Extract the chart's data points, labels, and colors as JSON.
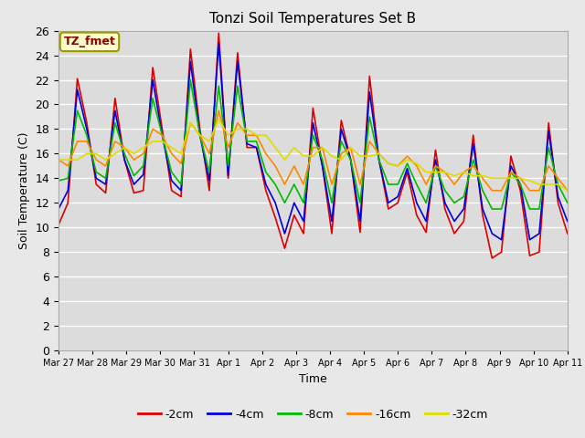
{
  "title": "Tonzi Soil Temperatures Set B",
  "xlabel": "Time",
  "ylabel": "Soil Temperature (C)",
  "ylim": [
    0,
    26
  ],
  "yticks": [
    0,
    2,
    4,
    6,
    8,
    10,
    12,
    14,
    16,
    18,
    20,
    22,
    24,
    26
  ],
  "annotation_text": "TZ_fmet",
  "annotation_color": "#8B0000",
  "annotation_bg": "#FFFFCC",
  "annotation_border": "#999900",
  "bg_color": "#E8E8E8",
  "plot_bg": "#DCDCDC",
  "grid_color": "#FFFFFF",
  "series": {
    "-2cm": {
      "color": "#DD0000",
      "lw": 1.2
    },
    "-4cm": {
      "color": "#0000DD",
      "lw": 1.2
    },
    "-8cm": {
      "color": "#00BB00",
      "lw": 1.2
    },
    "-16cm": {
      "color": "#FF8800",
      "lw": 1.2
    },
    "-32cm": {
      "color": "#DDDD00",
      "lw": 1.2
    }
  },
  "legend_order": [
    "-2cm",
    "-4cm",
    "-8cm",
    "-16cm",
    "-32cm"
  ],
  "x_tick_labels": [
    "Mar 27",
    "Mar 28",
    "Mar 29",
    "Mar 30",
    "Mar 31",
    "Apr 1",
    "Apr 2",
    "Apr 3",
    "Apr 4",
    "Apr 5",
    "Apr 6",
    "Apr 7",
    "Apr 8",
    "Apr 9",
    "Apr 10",
    "Apr 11"
  ],
  "data_2cm": [
    10.2,
    12.0,
    22.1,
    18.5,
    13.5,
    12.8,
    20.5,
    15.5,
    12.8,
    13.0,
    23.0,
    18.0,
    13.0,
    12.5,
    24.5,
    18.0,
    13.0,
    25.8,
    14.0,
    24.2,
    16.5,
    16.5,
    13.0,
    10.8,
    8.3,
    11.0,
    9.5,
    19.7,
    15.0,
    9.5,
    18.7,
    15.5,
    9.6,
    22.3,
    15.5,
    11.5,
    12.0,
    14.5,
    11.0,
    9.6,
    16.3,
    11.5,
    9.5,
    10.5,
    17.5,
    11.0,
    7.5,
    8.0,
    15.8,
    13.0,
    7.7,
    8.0,
    18.5,
    12.0,
    9.5
  ],
  "data_4cm": [
    11.5,
    13.0,
    21.2,
    18.0,
    14.0,
    13.5,
    19.5,
    15.5,
    13.5,
    14.3,
    22.0,
    17.5,
    13.8,
    13.0,
    23.5,
    17.5,
    13.8,
    25.0,
    14.2,
    23.5,
    16.8,
    16.5,
    13.5,
    12.0,
    9.5,
    12.0,
    10.5,
    18.5,
    15.0,
    10.5,
    18.0,
    15.5,
    10.5,
    21.0,
    15.5,
    12.0,
    12.5,
    14.8,
    12.0,
    10.5,
    15.5,
    12.0,
    10.5,
    11.5,
    16.8,
    11.5,
    9.5,
    9.0,
    15.0,
    13.5,
    9.0,
    9.5,
    17.8,
    12.5,
    10.5
  ],
  "data_8cm": [
    13.8,
    14.0,
    19.5,
    17.5,
    14.5,
    14.0,
    18.5,
    16.0,
    14.2,
    15.0,
    20.5,
    17.5,
    14.5,
    13.5,
    22.0,
    17.5,
    14.5,
    21.5,
    15.0,
    21.5,
    17.0,
    17.0,
    14.5,
    13.5,
    12.0,
    13.5,
    12.0,
    17.5,
    15.5,
    12.0,
    17.0,
    15.5,
    12.0,
    19.0,
    15.5,
    13.5,
    13.5,
    15.2,
    13.5,
    12.0,
    15.0,
    13.0,
    12.0,
    12.5,
    15.5,
    13.0,
    11.5,
    11.5,
    14.5,
    13.5,
    11.5,
    11.5,
    16.5,
    13.5,
    12.0
  ],
  "data_16cm": [
    15.5,
    15.0,
    17.0,
    17.0,
    15.5,
    15.0,
    17.0,
    16.5,
    15.5,
    16.0,
    18.0,
    17.5,
    16.0,
    15.2,
    18.5,
    17.5,
    16.0,
    19.5,
    16.5,
    18.5,
    17.5,
    17.5,
    16.0,
    15.0,
    13.5,
    15.0,
    13.5,
    16.5,
    16.5,
    13.5,
    16.0,
    16.5,
    13.5,
    17.0,
    16.0,
    15.2,
    15.0,
    15.8,
    15.0,
    13.5,
    15.0,
    14.5,
    13.5,
    14.5,
    15.0,
    14.0,
    13.0,
    13.0,
    14.5,
    14.0,
    13.0,
    13.0,
    15.0,
    14.0,
    13.0
  ],
  "data_32cm": [
    15.5,
    15.5,
    15.5,
    16.0,
    16.0,
    15.5,
    16.0,
    16.5,
    16.0,
    16.5,
    17.0,
    17.0,
    16.5,
    16.0,
    18.5,
    17.5,
    17.0,
    18.8,
    17.5,
    18.0,
    18.0,
    17.5,
    17.5,
    16.5,
    15.5,
    16.5,
    15.8,
    15.8,
    16.5,
    15.8,
    15.5,
    16.5,
    15.8,
    15.8,
    16.0,
    15.2,
    15.0,
    15.5,
    15.2,
    14.5,
    14.5,
    14.5,
    14.2,
    14.5,
    14.2,
    14.2,
    14.0,
    14.0,
    14.0,
    14.0,
    13.8,
    13.5,
    13.5,
    13.5,
    13.0
  ]
}
